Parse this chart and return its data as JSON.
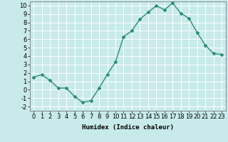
{
  "x": [
    0,
    1,
    2,
    3,
    4,
    5,
    6,
    7,
    8,
    9,
    10,
    11,
    12,
    13,
    14,
    15,
    16,
    17,
    18,
    19,
    20,
    21,
    22,
    23
  ],
  "y": [
    1.5,
    1.8,
    1.1,
    0.2,
    0.2,
    -0.8,
    -1.5,
    -1.3,
    0.2,
    1.8,
    3.3,
    6.3,
    7.0,
    8.4,
    9.2,
    10.0,
    9.5,
    10.3,
    9.1,
    8.5,
    6.8,
    5.3,
    4.3,
    4.2
  ],
  "line_color": "#2e8b7a",
  "marker": "D",
  "marker_size": 2.0,
  "background_color": "#c8eaea",
  "grid_color": "#ffffff",
  "xlabel": "Humidex (Indice chaleur)",
  "ylim": [
    -2.5,
    10.5
  ],
  "xlim": [
    -0.5,
    23.5
  ],
  "yticks": [
    -2,
    -1,
    0,
    1,
    2,
    3,
    4,
    5,
    6,
    7,
    8,
    9,
    10
  ],
  "xticks": [
    0,
    1,
    2,
    3,
    4,
    5,
    6,
    7,
    8,
    9,
    10,
    11,
    12,
    13,
    14,
    15,
    16,
    17,
    18,
    19,
    20,
    21,
    22,
    23
  ],
  "xlabel_fontsize": 6.5,
  "tick_fontsize": 6.0,
  "line_width": 1.0
}
